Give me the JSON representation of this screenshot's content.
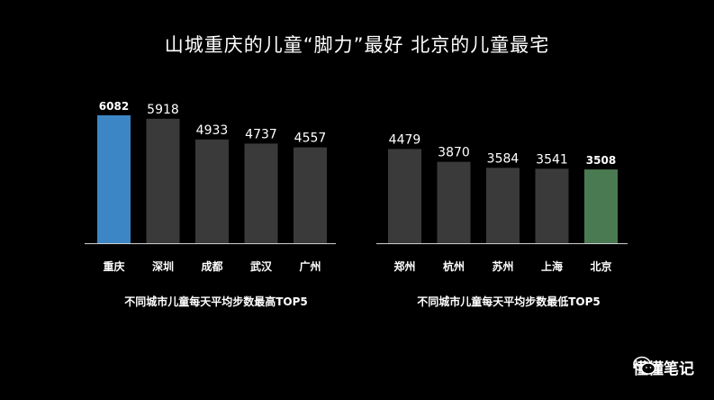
{
  "page": {
    "title": "山城重庆的儿童“脚力”最好  北京的儿童最宅"
  },
  "colors": {
    "background": "#000000",
    "bar_default": "#3a3a3a",
    "bar_highlight_top": "#3d86c6",
    "bar_highlight_bottom": "#4a7a52",
    "text": "#ffffff"
  },
  "chart_data": [
    {
      "type": "bar",
      "categories": [
        "重庆",
        "深圳",
        "成都",
        "武汉",
        "广州"
      ],
      "values": [
        6082,
        5918,
        4933,
        4737,
        4557
      ],
      "highlight_index": 0,
      "caption": "不同城市儿童每天平均步数最高TOP5",
      "ylim": [
        0,
        6500
      ]
    },
    {
      "type": "bar",
      "categories": [
        "郑州",
        "杭州",
        "苏州",
        "上海",
        "北京"
      ],
      "values": [
        4479,
        3870,
        3584,
        3541,
        3508
      ],
      "highlight_index": 4,
      "caption": "不同城市儿童每天平均步数最低TOP5",
      "ylim": [
        0,
        6500
      ]
    }
  ],
  "watermark": {
    "text": "懂懂笔记",
    "icon": "wechat-icon"
  }
}
